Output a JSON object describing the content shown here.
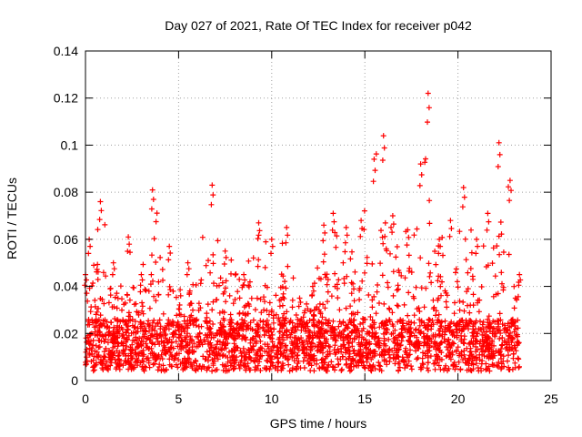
{
  "chart_data": {
    "type": "scatter",
    "title": "Day 027 of 2021, Rate Of TEC Index for receiver p042",
    "xlabel": "GPS time / hours",
    "ylabel": "ROTI / TECUs",
    "xlim": [
      0,
      25
    ],
    "ylim": [
      0,
      0.14
    ],
    "xticks": [
      0,
      5,
      10,
      15,
      20,
      25
    ],
    "xtick_labels": [
      "0",
      "5",
      "10",
      "15",
      "20",
      "25"
    ],
    "yticks": [
      0,
      0.02,
      0.04,
      0.06,
      0.08,
      0.1,
      0.12,
      0.14
    ],
    "ytick_labels": [
      "0",
      "0.02",
      "0.04",
      "0.06",
      "0.08",
      "0.1",
      "0.12",
      "0.14"
    ],
    "grid": true,
    "marker": "plus",
    "color": "#ff0000",
    "data_x_range": [
      0,
      23.3
    ],
    "series": [
      {
        "name": "ROTI",
        "note": "dense cloud of points mostly 0.005-0.03 TECU across 0-23.3 h; envelope below gives estimated local maxima",
        "envelope": [
          {
            "x": 0.0,
            "y": 0.045
          },
          {
            "x": 0.2,
            "y": 0.06
          },
          {
            "x": 0.8,
            "y": 0.076
          },
          {
            "x": 1.5,
            "y": 0.05
          },
          {
            "x": 2.3,
            "y": 0.061
          },
          {
            "x": 3.0,
            "y": 0.045
          },
          {
            "x": 3.6,
            "y": 0.081
          },
          {
            "x": 4.5,
            "y": 0.057
          },
          {
            "x": 5.5,
            "y": 0.05
          },
          {
            "x": 6.8,
            "y": 0.083
          },
          {
            "x": 7.5,
            "y": 0.055
          },
          {
            "x": 8.5,
            "y": 0.045
          },
          {
            "x": 9.3,
            "y": 0.067
          },
          {
            "x": 10.0,
            "y": 0.06
          },
          {
            "x": 10.8,
            "y": 0.065
          },
          {
            "x": 11.5,
            "y": 0.035
          },
          {
            "x": 12.2,
            "y": 0.04
          },
          {
            "x": 12.8,
            "y": 0.066
          },
          {
            "x": 13.3,
            "y": 0.071
          },
          {
            "x": 14.0,
            "y": 0.065
          },
          {
            "x": 14.8,
            "y": 0.068
          },
          {
            "x": 15.5,
            "y": 0.094
          },
          {
            "x": 16.0,
            "y": 0.104
          },
          {
            "x": 16.5,
            "y": 0.07
          },
          {
            "x": 17.3,
            "y": 0.064
          },
          {
            "x": 18.0,
            "y": 0.092
          },
          {
            "x": 18.4,
            "y": 0.122
          },
          {
            "x": 19.0,
            "y": 0.06
          },
          {
            "x": 19.6,
            "y": 0.068
          },
          {
            "x": 20.3,
            "y": 0.082
          },
          {
            "x": 21.0,
            "y": 0.06
          },
          {
            "x": 21.6,
            "y": 0.071
          },
          {
            "x": 22.2,
            "y": 0.101
          },
          {
            "x": 22.8,
            "y": 0.085
          },
          {
            "x": 23.3,
            "y": 0.045
          }
        ]
      }
    ]
  }
}
